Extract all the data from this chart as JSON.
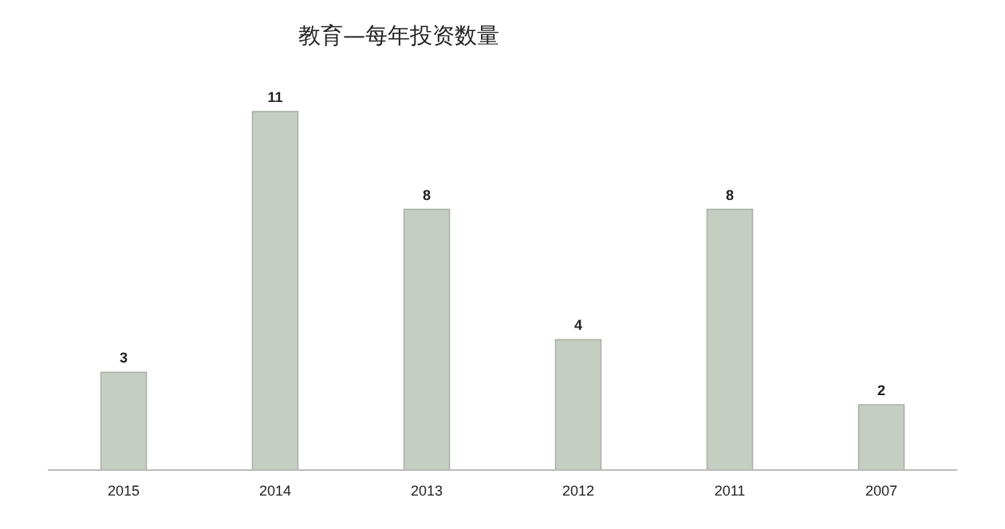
{
  "chart_data": {
    "type": "bar",
    "title": "教育—每年投资数量",
    "categories": [
      "2015",
      "2014",
      "2013",
      "2012",
      "2011",
      "2007"
    ],
    "values": [
      3,
      11,
      8,
      4,
      8,
      2
    ],
    "color": "#c4cec2",
    "data_labels": true
  }
}
